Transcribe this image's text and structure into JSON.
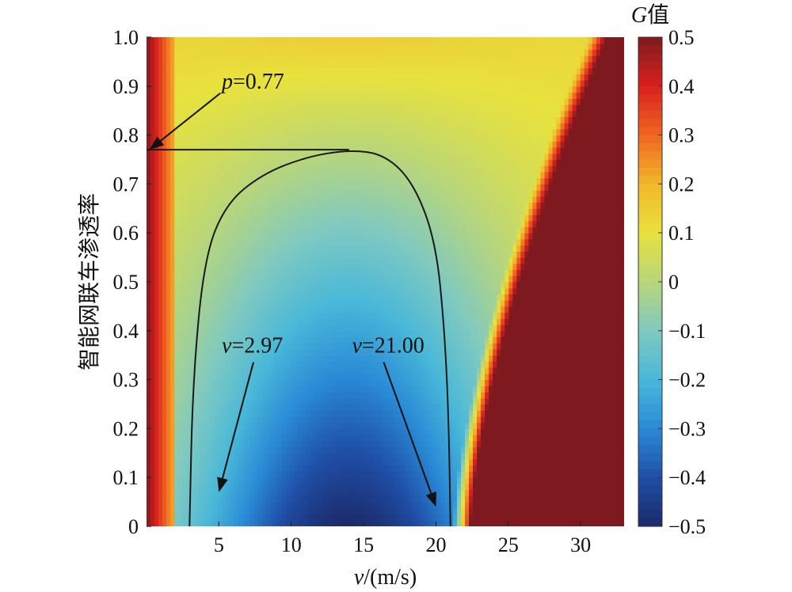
{
  "chart_data": {
    "type": "heatmap",
    "xlabel": "v/(m/s)",
    "ylabel": "智能网联车渗透率",
    "x_ticks": [
      "5",
      "10",
      "15",
      "20",
      "25",
      "30"
    ],
    "y_ticks": [
      "0",
      "0.1",
      "0.2",
      "0.3",
      "0.4",
      "0.5",
      "0.6",
      "0.7",
      "0.8",
      "0.9",
      "1.0"
    ],
    "xlim": [
      0,
      33
    ],
    "ylim": [
      0,
      1
    ],
    "grid": false,
    "colorbar": {
      "title": "G值",
      "range": [
        -0.5,
        0.5
      ],
      "ticks": [
        "0.5",
        "0.4",
        "0.3",
        "0.2",
        "0.1",
        "0",
        "−0.1",
        "−0.2",
        "−0.3",
        "−0.4",
        "−0.5"
      ],
      "colormap": [
        "#1b2a6b",
        "#1f4fa6",
        "#2a8ad6",
        "#49b8d8",
        "#80c9c0",
        "#b8d67a",
        "#e8e23d",
        "#f2b72a",
        "#ef6622",
        "#d8201e",
        "#7e1a1f"
      ]
    },
    "contour": {
      "level": 0,
      "points": [
        [
          2.97,
          0
        ],
        [
          3.2,
          0.3
        ],
        [
          4,
          0.55
        ],
        [
          5.5,
          0.66
        ],
        [
          8,
          0.72
        ],
        [
          11,
          0.755
        ],
        [
          14,
          0.77
        ],
        [
          16.5,
          0.76
        ],
        [
          18.5,
          0.7
        ],
        [
          20,
          0.58
        ],
        [
          20.6,
          0.4
        ],
        [
          20.9,
          0.2
        ],
        [
          21.0,
          0
        ]
      ],
      "threshold_line": {
        "y": 0.77,
        "x_from": 0,
        "x_to": 14
      }
    },
    "annotations": [
      {
        "id": "p",
        "text": "=0.77",
        "var": "p",
        "label_at": [
          5.2,
          0.895
        ],
        "arrow_to": [
          0.2,
          0.77
        ]
      },
      {
        "id": "v1",
        "text": "=2.97",
        "var": "v",
        "label_at": [
          5.2,
          0.355
        ],
        "arrow_to": [
          5.0,
          0.07
        ]
      },
      {
        "id": "v2",
        "text": "=21.00",
        "var": "v",
        "label_at": [
          14.2,
          0.355
        ],
        "arrow_to": [
          20.0,
          0.04
        ]
      }
    ]
  }
}
